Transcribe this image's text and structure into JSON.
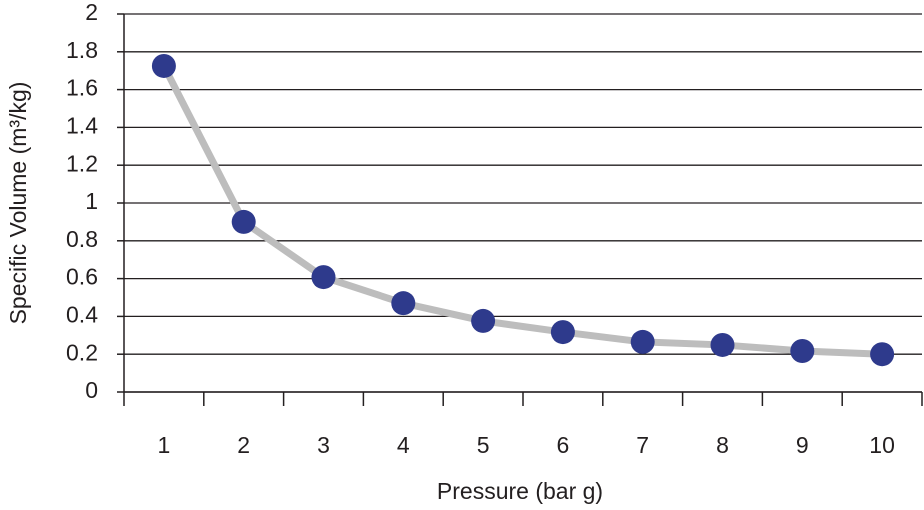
{
  "chart_data": {
    "type": "line",
    "x_label": "Pressure (bar g)",
    "y_label": "Specific Volume (m³/kg)",
    "categories": [
      "1",
      "2",
      "3",
      "4",
      "5",
      "6",
      "7",
      "8",
      "9",
      "10"
    ],
    "series": [
      {
        "name": "Specific Volume",
        "color": "#2e3a8c",
        "line_color": "#bdbdbd",
        "values": [
          1.725,
          0.9,
          0.608,
          0.47,
          0.376,
          0.317,
          0.265,
          0.249,
          0.217,
          0.2
        ]
      }
    ],
    "ylim": [
      0,
      2
    ],
    "yticks": [
      0,
      0.2,
      0.4,
      0.6,
      0.8,
      1,
      1.2,
      1.4,
      1.6,
      1.8,
      2
    ],
    "grid": true
  }
}
